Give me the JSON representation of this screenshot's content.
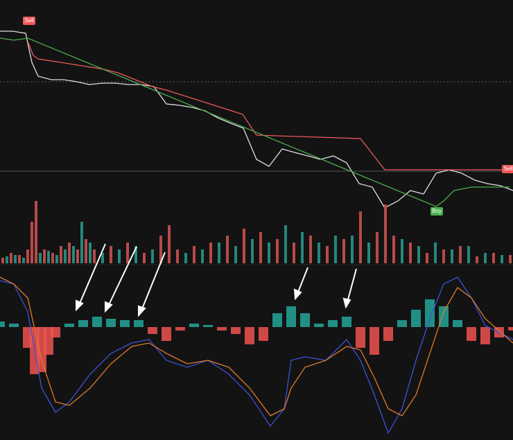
{
  "chart_data": [
    {
      "type": "line",
      "xlim": [
        0,
        740
      ],
      "ylim": [
        0,
        300
      ],
      "series": [
        {
          "color": "#e0e0e0",
          "x": [
            0,
            18,
            37,
            46,
            55,
            74,
            92,
            111,
            129,
            148,
            166,
            185,
            203,
            222,
            240,
            259,
            277,
            296,
            314,
            333,
            351,
            370,
            388,
            407,
            425,
            444,
            462,
            481,
            500,
            518,
            537,
            555,
            574,
            592,
            611,
            629,
            648,
            666,
            685,
            703,
            722,
            740
          ],
          "values": [
            275,
            275,
            272,
            230,
            210,
            205,
            205,
            202,
            198,
            200,
            200,
            198,
            198,
            195,
            170,
            168,
            165,
            160,
            150,
            142,
            135,
            90,
            80,
            105,
            100,
            95,
            90,
            95,
            85,
            55,
            50,
            20,
            30,
            45,
            40,
            70,
            75,
            70,
            60,
            55,
            52,
            45
          ]
        },
        {
          "color": "#f05a5a",
          "x": [
            40,
            48,
            55,
            100,
            150,
            170,
            220,
            240,
            350,
            370,
            520,
            555,
            629,
            735,
            740
          ],
          "values": [
            260,
            240,
            235,
            228,
            220,
            215,
            195,
            190,
            155,
            125,
            120,
            75,
            75,
            75,
            75
          ]
        },
        {
          "color": "#4caf50",
          "x": [
            0,
            20,
            40,
            629,
            640,
            655,
            680,
            735
          ],
          "values": [
            265,
            262,
            265,
            22,
            30,
            45,
            50,
            50
          ]
        }
      ],
      "labels": [
        {
          "text": "Sell",
          "x": 42,
          "value": 290
        },
        {
          "text": "Buy",
          "x": 630,
          "value": 15
        },
        {
          "text": "Sell",
          "x": 733,
          "value": 76
        }
      ]
    },
    {
      "type": "bar",
      "xlim": [
        0,
        740
      ],
      "ylim": [
        0,
        100
      ],
      "series": [
        {
          "color": "#b84a48",
          "x": [
            4,
            16,
            28,
            40,
            46,
            52,
            64,
            76,
            88,
            100,
            112,
            124,
            136,
            160,
            184,
            208,
            232,
            244,
            256,
            280,
            304,
            328,
            352,
            376,
            400,
            424,
            448,
            472,
            496,
            520,
            544,
            556,
            568,
            592,
            616,
            640,
            664,
            688,
            712,
            736
          ],
          "values": [
            8,
            15,
            12,
            20,
            60,
            90,
            20,
            15,
            25,
            30,
            20,
            35,
            20,
            25,
            30,
            15,
            40,
            55,
            20,
            25,
            30,
            40,
            50,
            45,
            35,
            30,
            40,
            25,
            35,
            75,
            45,
            85,
            40,
            30,
            15,
            20,
            25,
            10,
            15,
            12
          ]
        },
        {
          "color": "#26877c",
          "x": [
            10,
            22,
            34,
            58,
            70,
            82,
            94,
            106,
            118,
            130,
            148,
            172,
            196,
            220,
            268,
            292,
            316,
            340,
            364,
            388,
            412,
            436,
            460,
            484,
            508,
            532,
            580,
            604,
            628,
            652,
            676,
            700,
            724
          ],
          "values": [
            10,
            12,
            8,
            15,
            18,
            12,
            20,
            25,
            60,
            30,
            15,
            20,
            25,
            20,
            15,
            20,
            30,
            25,
            35,
            30,
            55,
            45,
            30,
            40,
            40,
            30,
            35,
            25,
            30,
            20,
            25,
            15,
            12
          ]
        }
      ]
    },
    {
      "type": "macd",
      "xlim": [
        0,
        740
      ],
      "ylim": [
        -160,
        90
      ],
      "up_color": "#26a69a",
      "down_color": "#ef5350",
      "histogram": {
        "x": [
          0,
          20,
          40,
          50,
          60,
          70,
          80,
          100,
          120,
          140,
          160,
          180,
          200,
          220,
          240,
          260,
          280,
          300,
          320,
          340,
          360,
          380,
          400,
          420,
          440,
          460,
          480,
          500,
          520,
          540,
          560,
          580,
          600,
          620,
          640,
          660,
          680,
          700,
          720,
          740
        ],
        "values": [
          8,
          5,
          -30,
          -68,
          -65,
          -40,
          -15,
          5,
          10,
          15,
          12,
          10,
          10,
          -10,
          -20,
          -5,
          5,
          3,
          -5,
          -10,
          -25,
          -20,
          20,
          30,
          20,
          5,
          10,
          15,
          -30,
          -40,
          -20,
          10,
          25,
          40,
          30,
          10,
          -20,
          -25,
          -15,
          -5
        ]
      },
      "series": [
        {
          "color": "#3f51d8",
          "x": [
            0,
            20,
            40,
            60,
            80,
            100,
            130,
            160,
            190,
            215,
            240,
            270,
            300,
            330,
            360,
            390,
            410,
            420,
            440,
            470,
            500,
            520,
            540,
            560,
            580,
            600,
            620,
            640,
            660,
            680,
            700,
            740
          ],
          "values": [
            67,
            62,
            22,
            -88,
            -123,
            -108,
            -68,
            -38,
            -23,
            -18,
            -48,
            -58,
            -48,
            -68,
            -98,
            -143,
            -118,
            -48,
            -43,
            -48,
            -18,
            -48,
            -98,
            -153,
            -118,
            -48,
            12,
            62,
            72,
            42,
            2,
            -18
          ]
        },
        {
          "color": "#e07b2c",
          "x": [
            0,
            20,
            40,
            60,
            80,
            100,
            130,
            160,
            190,
            215,
            240,
            270,
            300,
            330,
            360,
            390,
            410,
            420,
            440,
            470,
            500,
            520,
            540,
            560,
            580,
            600,
            620,
            640,
            660,
            680,
            700,
            740
          ],
          "values": [
            72,
            62,
            42,
            -48,
            -108,
            -113,
            -88,
            -53,
            -28,
            -23,
            -38,
            -53,
            -48,
            -58,
            -88,
            -128,
            -118,
            -88,
            -58,
            -48,
            -28,
            -33,
            -73,
            -118,
            -128,
            -98,
            -38,
            22,
            57,
            42,
            12,
            -23
          ]
        }
      ]
    }
  ]
}
